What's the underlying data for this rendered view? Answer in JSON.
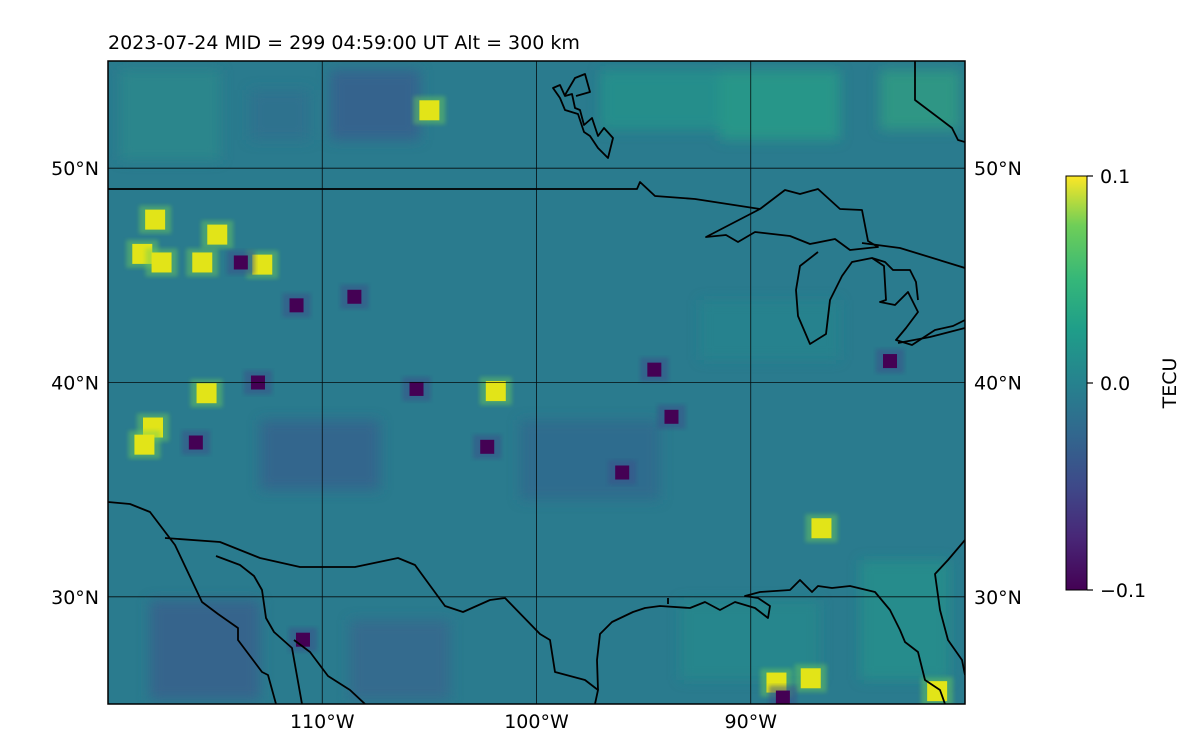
{
  "title": "2023-07-24  MID = 299    04:59:00  UT  Alt = 300 km",
  "map": {
    "lon_range": [
      -120,
      -80
    ],
    "lat_range": [
      25,
      55
    ],
    "gridlines": true,
    "colormap": "viridis",
    "lon_ticks": [
      {
        "value": -110,
        "label": "110°W"
      },
      {
        "value": -100,
        "label": "100°W"
      },
      {
        "value": -90,
        "label": "90°W"
      }
    ],
    "lat_ticks": [
      {
        "value": 50,
        "label": "50°N"
      },
      {
        "value": 40,
        "label": "40°N"
      },
      {
        "value": 30,
        "label": "30°N"
      }
    ]
  },
  "colorbar": {
    "label": "TECU",
    "min": -0.1,
    "max": 0.1,
    "ticks": [
      {
        "value": 0.1,
        "label": "0.1"
      },
      {
        "value": 0.0,
        "label": "0.0"
      },
      {
        "value": -0.1,
        "label": "−0.1"
      }
    ]
  },
  "hotspots_positive": [
    {
      "lon": -114.9,
      "lat": 46.9
    },
    {
      "lon": -115.6,
      "lat": 45.6
    },
    {
      "lon": -117.8,
      "lat": 47.6
    },
    {
      "lon": -118.4,
      "lat": 46.0
    },
    {
      "lon": -117.5,
      "lat": 45.6
    },
    {
      "lon": -115.4,
      "lat": 39.5
    },
    {
      "lon": -117.9,
      "lat": 37.9
    },
    {
      "lon": -118.3,
      "lat": 37.1
    },
    {
      "lon": -105.0,
      "lat": 52.7
    },
    {
      "lon": -112.8,
      "lat": 45.5
    },
    {
      "lon": -101.9,
      "lat": 39.6
    },
    {
      "lon": -88.8,
      "lat": 26.0
    },
    {
      "lon": -87.2,
      "lat": 26.2
    },
    {
      "lon": -81.3,
      "lat": 25.6
    },
    {
      "lon": -86.7,
      "lat": 33.2
    }
  ],
  "hotspots_negative": [
    {
      "lon": -110.9,
      "lat": 28.0
    },
    {
      "lon": -115.9,
      "lat": 37.2
    },
    {
      "lon": -113.0,
      "lat": 40.0
    },
    {
      "lon": -108.5,
      "lat": 44.0
    },
    {
      "lon": -111.2,
      "lat": 43.6
    },
    {
      "lon": -113.8,
      "lat": 45.6
    },
    {
      "lon": -105.6,
      "lat": 39.7
    },
    {
      "lon": -93.7,
      "lat": 38.4
    },
    {
      "lon": -94.5,
      "lat": 40.6
    },
    {
      "lon": -88.5,
      "lat": 25.3
    },
    {
      "lon": -83.5,
      "lat": 41.0
    },
    {
      "lon": -102.3,
      "lat": 37.0
    },
    {
      "lon": -96.0,
      "lat": 35.8
    }
  ]
}
